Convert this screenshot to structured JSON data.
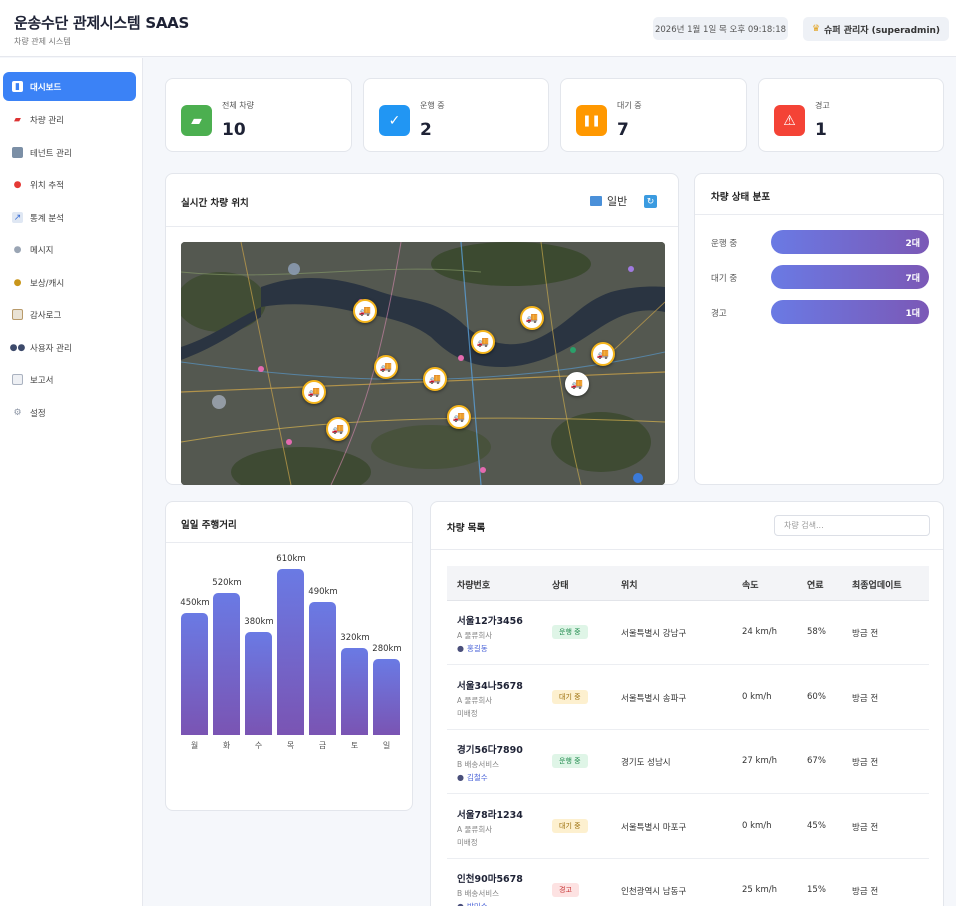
{
  "header": {
    "title": "운송수단 관제시스템 SAAS",
    "subtitle": "차량 관제 시스템",
    "datetime": "2026년 1월 1일 목 오후 09:18:18",
    "user": "슈퍼 관리자 (superadmin)"
  },
  "sidebar": {
    "items": [
      {
        "label": "대시보드",
        "icon": "chart-icon"
      },
      {
        "label": "차량 관리",
        "icon": "truck-icon"
      },
      {
        "label": "테넌트 관리",
        "icon": "building-icon"
      },
      {
        "label": "위치 추적",
        "icon": "pin-icon"
      },
      {
        "label": "통계 분석",
        "icon": "trend-icon"
      },
      {
        "label": "메시지",
        "icon": "speech-icon"
      },
      {
        "label": "보상/캐시",
        "icon": "moneybag-icon"
      },
      {
        "label": "감사로그",
        "icon": "clipboard-icon"
      },
      {
        "label": "사용자 관리",
        "icon": "users-icon"
      },
      {
        "label": "보고서",
        "icon": "report-icon"
      },
      {
        "label": "설정",
        "icon": "gear-icon"
      }
    ]
  },
  "stats": [
    {
      "label": "전체 차량",
      "value": "10",
      "color": "#4caf50"
    },
    {
      "label": "운행 중",
      "value": "2",
      "color": "#2196f3"
    },
    {
      "label": "대기 중",
      "value": "7",
      "color": "#ff9800"
    },
    {
      "label": "경고",
      "value": "1",
      "color": "#f44336"
    }
  ],
  "map_panel": {
    "title": "실시간 차량 위치",
    "mode_label": "일반"
  },
  "distribution": {
    "title": "차량 상태 분포",
    "rows": [
      {
        "label": "운행 중",
        "value": "2대"
      },
      {
        "label": "대기 중",
        "value": "7대"
      },
      {
        "label": "경고",
        "value": "1대"
      }
    ]
  },
  "mileage": {
    "title": "일일 주행거리"
  },
  "chart_data": {
    "type": "bar",
    "title": "일일 주행거리",
    "categories": [
      "월",
      "화",
      "수",
      "목",
      "금",
      "토",
      "일"
    ],
    "values": [
      450,
      520,
      380,
      610,
      490,
      320,
      280
    ],
    "value_labels": [
      "450km",
      "520km",
      "380km",
      "610km",
      "490km",
      "320km",
      "280km"
    ],
    "ylim": [
      0,
      610
    ],
    "grid": false
  },
  "vehicles": {
    "title": "차량 목록",
    "search_placeholder": "차량 검색...",
    "columns": [
      "차량번호",
      "상태",
      "위치",
      "속도",
      "연료",
      "최종업데이트"
    ],
    "rows": [
      {
        "plate": "서울12가3456",
        "company": "A 물류회사",
        "driver": "홍길동",
        "assigned": true,
        "status": "운행 중",
        "kind": "run",
        "location": "서울특별시 강남구",
        "speed": "24 km/h",
        "fuel": "58%",
        "updated": "방금 전"
      },
      {
        "plate": "서울34나5678",
        "company": "A 물류회사",
        "driver": "미배정",
        "assigned": false,
        "status": "대기 중",
        "kind": "wait",
        "location": "서울특별시 송파구",
        "speed": "0 km/h",
        "fuel": "60%",
        "updated": "방금 전"
      },
      {
        "plate": "경기56다7890",
        "company": "B 배송서비스",
        "driver": "김철수",
        "assigned": true,
        "status": "운행 중",
        "kind": "run",
        "location": "경기도 성남시",
        "speed": "27 km/h",
        "fuel": "67%",
        "updated": "방금 전"
      },
      {
        "plate": "서울78라1234",
        "company": "A 물류회사",
        "driver": "미배정",
        "assigned": false,
        "status": "대기 중",
        "kind": "wait",
        "location": "서울특별시 마포구",
        "speed": "0 km/h",
        "fuel": "45%",
        "updated": "방금 전"
      },
      {
        "plate": "인천90마5678",
        "company": "B 배송서비스",
        "driver": "박민수",
        "assigned": true,
        "status": "경고",
        "kind": "warn",
        "location": "인천광역시 남동구",
        "speed": "25 km/h",
        "fuel": "15%",
        "updated": "방금 전"
      }
    ]
  }
}
